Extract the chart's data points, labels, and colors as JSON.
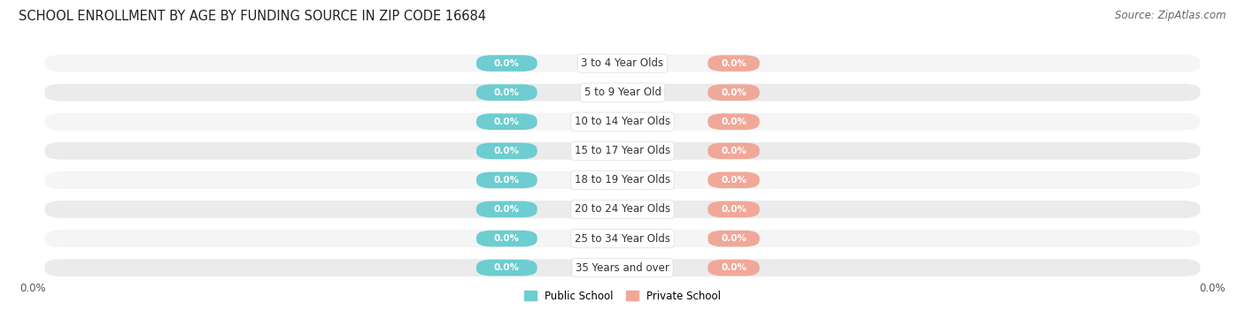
{
  "title": "SCHOOL ENROLLMENT BY AGE BY FUNDING SOURCE IN ZIP CODE 16684",
  "source": "Source: ZipAtlas.com",
  "categories": [
    "3 to 4 Year Olds",
    "5 to 9 Year Old",
    "10 to 14 Year Olds",
    "15 to 17 Year Olds",
    "18 to 19 Year Olds",
    "20 to 24 Year Olds",
    "25 to 34 Year Olds",
    "35 Years and over"
  ],
  "public_values": [
    0.0,
    0.0,
    0.0,
    0.0,
    0.0,
    0.0,
    0.0,
    0.0
  ],
  "private_values": [
    0.0,
    0.0,
    0.0,
    0.0,
    0.0,
    0.0,
    0.0,
    0.0
  ],
  "public_color": "#6dcdd0",
  "private_color": "#f0a899",
  "row_bg_light": "#f5f5f5",
  "row_bg_dark": "#ebebeb",
  "bar_bg_color": "#e8e8e8",
  "label_color": "#333333",
  "value_label_color": "#ffffff",
  "axis_label": "0.0%",
  "figsize": [
    14.06,
    3.77
  ],
  "dpi": 100,
  "title_fontsize": 10.5,
  "source_fontsize": 8.5,
  "bar_height": 0.62,
  "legend_public": "Public School",
  "legend_private": "Private School"
}
